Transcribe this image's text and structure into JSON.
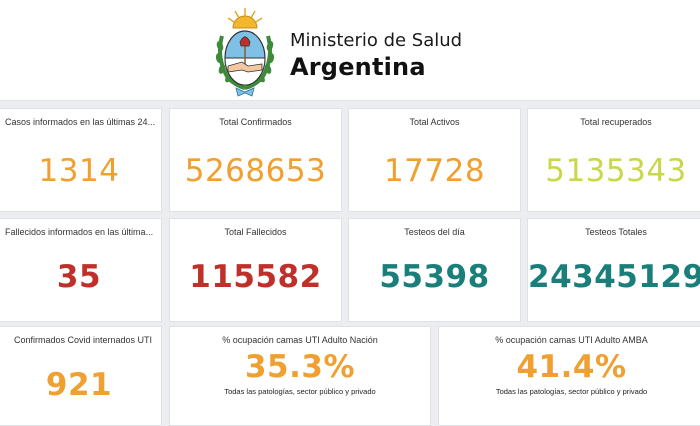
{
  "header": {
    "brand_sub": "Ministerio de Salud",
    "brand_main": "Argentina",
    "logo_icon": "argentina-coat-of-arms-icon"
  },
  "colors": {
    "orange": "#f0a030",
    "lime": "#c8d84a",
    "red": "#c0302a",
    "teal": "#1a7f7a",
    "crest_blue": "#7ec0e6"
  },
  "row1": [
    {
      "title": "Casos informados en las últimas 24...",
      "value": "1314"
    },
    {
      "title": "Total Confirmados",
      "value": "5268653"
    },
    {
      "title": "Total Activos",
      "value": "17728"
    },
    {
      "title": "Total recuperados",
      "value": "5135343"
    }
  ],
  "row2": [
    {
      "title": "Fallecidos informados en las última...",
      "value": "35"
    },
    {
      "title": "Total Fallecidos",
      "value": "115582"
    },
    {
      "title": "Testeos del día",
      "value": "55398"
    },
    {
      "title": "Testeos Totales",
      "value": "24345129"
    }
  ],
  "row3": [
    {
      "title": "Confirmados Covid internados UTI",
      "value": "921"
    },
    {
      "title": "% ocupación camas UTI Adulto Nación",
      "value": "35.3%",
      "note": "Todas las patologías, sector público y privado"
    },
    {
      "title": "% ocupación camas UTI Adulto AMBA",
      "value": "41.4%",
      "note": "Todas las patologías, sector público y privado"
    }
  ]
}
